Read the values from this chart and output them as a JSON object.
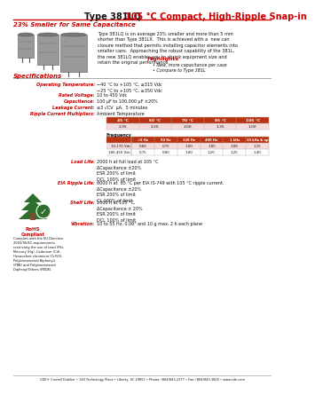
{
  "title_black": "Type 381LQ ",
  "title_red": "105 °C Compact, High-Ripple Snap-in",
  "subtitle": "23% Smaller for Same Capacitance",
  "body_text": "Type 381LQ is on average 23% smaller and more than 5 mm\nshorter than Type 381LX.  This is achieved with a  new can\nclosure method that permits installing capacitor elements into\nsmaller cans.  Approaching the robust capability of the 381L,\nthe new 381LQ enables you to shrink equipment size and\nretain the original performance.",
  "highlights_title": "Highlights",
  "highlights_bullets": [
    "New, more capacitance per case",
    "Compare to Type 381L"
  ],
  "spec_title": "Specifications",
  "amb_temp_headers": [
    "45 °C",
    "60 °C",
    "70 °C",
    "85 °C",
    "105 °C"
  ],
  "amb_temp_values": [
    "2.35",
    "2.20",
    "2.00",
    "1.35",
    "1.00"
  ],
  "freq_label": "Frequency",
  "freq_headers": [
    "<5 Hz",
    "50 Hz",
    "120 Hz",
    "400 Hz",
    "1 kHz",
    "10 kHz & up"
  ],
  "freq_row1_label": "10-175 Vdc",
  "freq_row1": [
    "0.60",
    "0.75",
    "1.00",
    "1.05",
    "1.08",
    "1.15"
  ],
  "freq_row2_label": "180-450 Vdc",
  "freq_row2": [
    "0.75",
    "0.80",
    "1.00",
    "1.20",
    "1.25",
    "1.40"
  ],
  "load_life_label": "Load Life:",
  "load_life_text": "2000 h at full load at 105 °C\nΔCapacitance ±20%\nESR 200% of limit\nDCL 100% of limit",
  "eia_label": "EIA Ripple Life:",
  "eia_text": "8000 h at  85 °C per EIA IS-749 with 105 °C ripple current.\nΔCapacitance ±20%\nESR 200% of limit\nCL 100% of limit",
  "shelf_label": "Shelf Life:",
  "shelf_text": "1000 h at 105 °C,\nΔCapacitance ± 20%\nESR 200% of limit\nDCL 100% of limit",
  "vib_label": "Vibration:",
  "vib_text": "10 to 55 Hz, 0.06\" and 10 g max, 2 h each plane",
  "footer": "CDE® Cornell Dubilier • 140 Technology Place • Liberty, SC 29657 • Phone: (864)843-2277 • Fax: (864)843-3800 • www.cde.com",
  "rohs_text": "Complies with the EU Directive\n2002/95/EC requirements\nrestricting the use of Lead (Pb),\nMercury (Hg), Cadmium (Cd),\nHexavalent chromium (Cr(VI)),\nPolybrominated Biphenyls\n(PBB) and Polybrominated\nDiphenyl Ethers (PBDE).",
  "red": "#CC0000",
  "dark_red": "#990000",
  "black": "#111111",
  "bg": "#FFFFFF",
  "table_header_bg": "#BB3311",
  "light_pink": "#F5DDDD"
}
